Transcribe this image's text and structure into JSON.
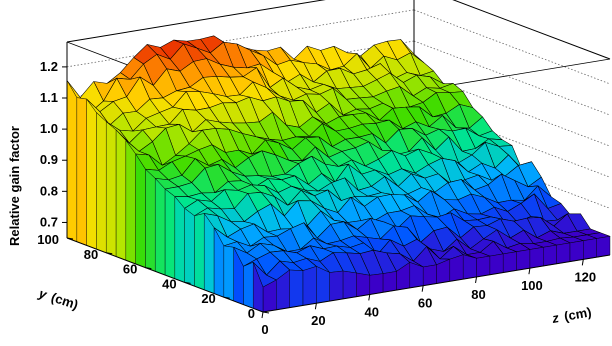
{
  "chart_data": {
    "type": "surface3d",
    "zlabel": "Relative gain factor",
    "ylabel_var": "y",
    "ylabel_unit": "(cm)",
    "xlabel_var": "z",
    "xlabel_unit": "(cm)",
    "x_ticks": [
      "0",
      "20",
      "40",
      "60",
      "80",
      "100",
      "120"
    ],
    "y_ticks": [
      "0",
      "20",
      "40",
      "60",
      "80",
      "100"
    ],
    "z_ticks": [
      "0.7",
      "0.8",
      "0.9",
      "1.0",
      "1.1",
      "1.2"
    ],
    "xlim": [
      0,
      130
    ],
    "ylim": [
      0,
      100
    ],
    "zlim": [
      0.65,
      1.28
    ],
    "grid": true,
    "peak_near": {
      "x": 40,
      "y": 95,
      "value": 1.23
    },
    "surface_min": 0.71,
    "colormap": [
      "#3b00c8",
      "#0050ff",
      "#00b4ff",
      "#00e68c",
      "#3cdc00",
      "#b4e600",
      "#ffdc00",
      "#ff8c00",
      "#e61e00"
    ]
  }
}
